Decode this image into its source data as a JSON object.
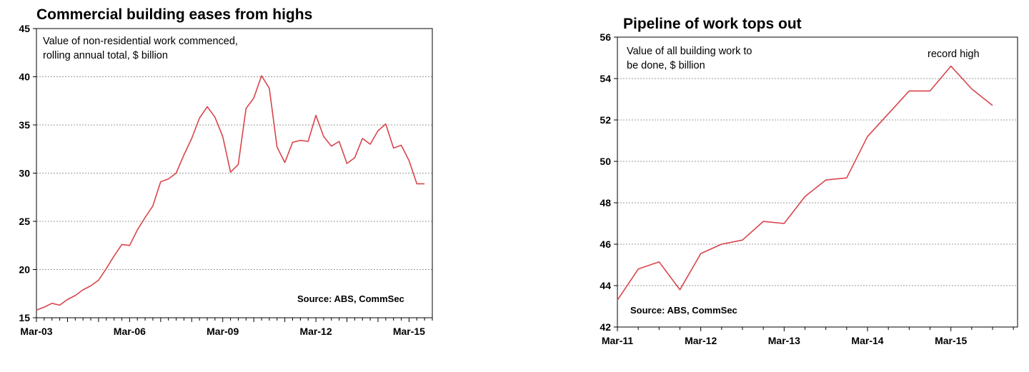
{
  "colors": {
    "line": "#d9454c",
    "grid": "#9a9a9a",
    "axis": "#000000"
  },
  "chart_data": [
    {
      "type": "line",
      "title": "Commercial building eases from highs",
      "annotation_lines": [
        "Value of non-residential work commenced,",
        "rolling annual total, $ billion"
      ],
      "source": "Source: ABS, CommSec",
      "grid": true,
      "ylim": [
        15,
        45
      ],
      "yticks": [
        "15",
        "20",
        "25",
        "30",
        "35",
        "40",
        "45"
      ],
      "xlim": [
        2003.0,
        2015.75
      ],
      "xtick_positions": [
        2003.0,
        2006.0,
        2009.0,
        2012.0,
        2015.0
      ],
      "xtick_labels": [
        "Mar-03",
        "Mar-06",
        "Mar-09",
        "Mar-12",
        "Mar-15"
      ],
      "x": [
        2003.0,
        2003.25,
        2003.5,
        2003.75,
        2004.0,
        2004.25,
        2004.5,
        2004.75,
        2005.0,
        2005.25,
        2005.5,
        2005.75,
        2006.0,
        2006.25,
        2006.5,
        2006.75,
        2007.0,
        2007.25,
        2007.5,
        2007.75,
        2008.0,
        2008.25,
        2008.5,
        2008.75,
        2009.0,
        2009.25,
        2009.5,
        2009.75,
        2010.0,
        2010.25,
        2010.5,
        2010.75,
        2011.0,
        2011.25,
        2011.5,
        2011.75,
        2012.0,
        2012.25,
        2012.5,
        2012.75,
        2013.0,
        2013.25,
        2013.5,
        2013.75,
        2014.0,
        2014.25,
        2014.5,
        2014.75,
        2015.0,
        2015.25,
        2015.5
      ],
      "values": [
        15.8,
        16.1,
        16.5,
        16.3,
        16.9,
        17.3,
        17.9,
        18.3,
        18.9,
        20.1,
        21.4,
        22.6,
        22.5,
        24.1,
        25.4,
        26.6,
        29.1,
        29.4,
        30.0,
        31.9,
        33.6,
        35.7,
        36.9,
        35.8,
        33.8,
        30.1,
        30.9,
        36.7,
        37.8,
        40.1,
        38.8,
        32.7,
        31.1,
        33.2,
        33.4,
        33.3,
        36.0,
        33.8,
        32.8,
        33.3,
        31.0,
        31.6,
        33.6,
        33.0,
        34.4,
        35.1,
        32.6,
        32.9,
        31.3,
        28.9,
        28.9
      ]
    },
    {
      "type": "line",
      "title": "Pipeline of work tops out",
      "annotation_lines": [
        "Value of all building work to",
        "be done, $ billion"
      ],
      "source": "Source: ABS, CommSec",
      "callout": "record high",
      "grid": true,
      "ylim": [
        42,
        56
      ],
      "yticks": [
        "42",
        "44",
        "46",
        "48",
        "50",
        "52",
        "54",
        "56"
      ],
      "xlim": [
        2011.0,
        2015.8
      ],
      "xtick_positions": [
        2011.0,
        2012.0,
        2013.0,
        2014.0,
        2015.0
      ],
      "xtick_labels": [
        "Mar-11",
        "Mar-12",
        "Mar-13",
        "Mar-14",
        "Mar-15"
      ],
      "x": [
        2011.0,
        2011.25,
        2011.5,
        2011.75,
        2012.0,
        2012.25,
        2012.5,
        2012.75,
        2013.0,
        2013.25,
        2013.5,
        2013.75,
        2014.0,
        2014.25,
        2014.5,
        2014.75,
        2015.0,
        2015.25,
        2015.5
      ],
      "values": [
        43.3,
        44.8,
        45.15,
        43.8,
        45.55,
        46.0,
        46.2,
        47.1,
        47.0,
        48.3,
        49.1,
        49.2,
        51.2,
        52.3,
        53.4,
        53.4,
        54.6,
        53.5,
        52.7
      ]
    }
  ]
}
